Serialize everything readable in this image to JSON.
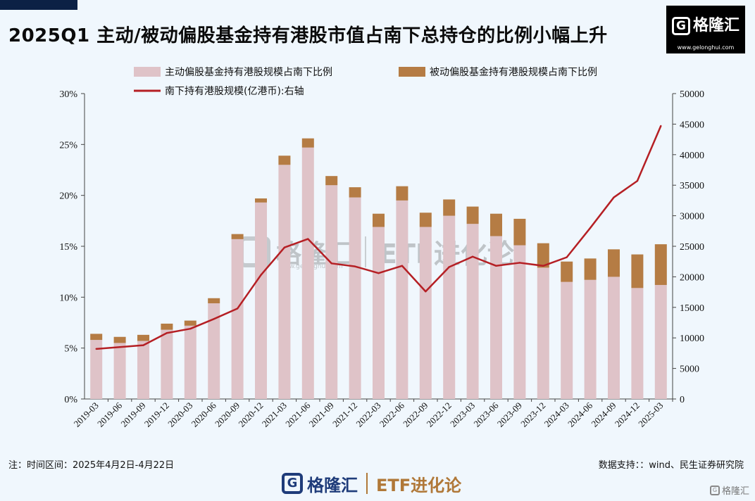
{
  "header": {
    "title": "2025Q1 主动/被动偏股基金持有港股市值占南下总持仓的比例小幅上升",
    "brand_name": "格隆汇",
    "brand_url": "www.gelonghui.com"
  },
  "watermark": {
    "name": "格隆汇",
    "url": "www.gelonghui.com",
    "etf": "ETF进化论"
  },
  "footer": {
    "note_left": "注：时间区间：2025年4月2日-4月22日",
    "note_right": "数据支持：：wind、民生证券研究院",
    "brand_name": "格隆汇",
    "etf_label": "ETF进化论",
    "corner_label": "格隆汇"
  },
  "chart_data": {
    "type": "bar",
    "stacked": true,
    "categories": [
      "2019-03",
      "2019-06",
      "2019-09",
      "2019-12",
      "2020-03",
      "2020-06",
      "2020-09",
      "2020-12",
      "2021-03",
      "2021-06",
      "2021-09",
      "2021-12",
      "2022-03",
      "2022-06",
      "2022-09",
      "2022-12",
      "2023-03",
      "2023-06",
      "2023-09",
      "2023-12",
      "2024-03",
      "2024-06",
      "2024-09",
      "2024-12",
      "2025-03"
    ],
    "series": [
      {
        "name": "主动偏股基金持有港股规模占南下比例",
        "type": "bar",
        "axis": "left",
        "color": "#dfc3c8",
        "values": [
          5.8,
          5.5,
          5.7,
          6.8,
          7.2,
          9.4,
          15.7,
          19.3,
          23.0,
          24.7,
          21.0,
          19.8,
          16.9,
          19.5,
          16.9,
          18.0,
          17.2,
          16.0,
          15.1,
          12.9,
          11.5,
          11.7,
          12.0,
          10.9,
          11.2
        ]
      },
      {
        "name": "被动偏股基金持有港股规模占南下比例",
        "type": "bar",
        "axis": "left",
        "color": "#b57c44",
        "values": [
          0.6,
          0.6,
          0.6,
          0.6,
          0.5,
          0.5,
          0.5,
          0.4,
          0.9,
          0.9,
          0.9,
          1.0,
          1.3,
          1.4,
          1.4,
          1.6,
          1.7,
          2.2,
          2.6,
          2.4,
          2.0,
          2.1,
          2.7,
          3.3,
          4.0
        ]
      },
      {
        "name": "南下持有港股规模(亿港币):右轴",
        "type": "line",
        "axis": "right",
        "color": "#b51f24",
        "values": [
          8200,
          8500,
          8800,
          10800,
          11500,
          13100,
          14800,
          20300,
          24800,
          26200,
          22200,
          21700,
          20600,
          21800,
          17600,
          21600,
          23300,
          21800,
          22300,
          21800,
          23200,
          28000,
          33000,
          35700,
          44700
        ]
      }
    ],
    "left_axis": {
      "min": 0,
      "max": 30,
      "step": 5,
      "suffix": "%"
    },
    "right_axis": {
      "min": 0,
      "max": 50000,
      "step": 5000
    },
    "legend_position": "top",
    "grid": false
  }
}
